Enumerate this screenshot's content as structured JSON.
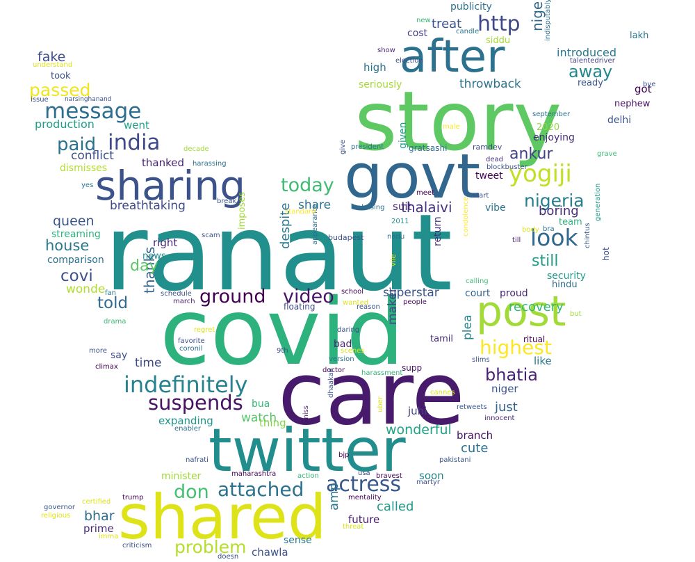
{
  "wordcloud": {
    "words": [
      {
        "text": "ranaut",
        "color": "#21908d"
      },
      {
        "text": "covid",
        "color": "#2db27d"
      },
      {
        "text": "story",
        "color": "#5ec962"
      },
      {
        "text": "care",
        "color": "#481a6c"
      },
      {
        "text": "twitter",
        "color": "#218e8d"
      },
      {
        "text": "shared",
        "color": "#dde318"
      },
      {
        "text": "govt",
        "color": "#31678e"
      },
      {
        "text": "after",
        "color": "#2c718e"
      },
      {
        "text": "sharing",
        "color": "#3b528b"
      },
      {
        "text": "post",
        "color": "#a2da37"
      },
      {
        "text": "message",
        "color": "#2e6e8e"
      },
      {
        "text": "india",
        "color": "#3e4a89"
      },
      {
        "text": "indefinitely",
        "color": "#26828e"
      },
      {
        "text": "suspends",
        "color": "#471365"
      },
      {
        "text": "actress",
        "color": "#38588c"
      },
      {
        "text": "attached",
        "color": "#2c728e"
      },
      {
        "text": "don",
        "color": "#44bf70"
      },
      {
        "text": "ground",
        "color": "#440154"
      },
      {
        "text": "video",
        "color": "#481467"
      },
      {
        "text": "yogiji",
        "color": "#c2df23"
      },
      {
        "text": "look",
        "color": "#31688e"
      },
      {
        "text": "nigeria",
        "color": "#277f8e"
      },
      {
        "text": "today",
        "color": "#3fbc73"
      },
      {
        "text": "http",
        "color": "#3e4989"
      },
      {
        "text": "nigerian",
        "color": "#31688e"
      },
      {
        "text": "highest",
        "color": "#fde725"
      },
      {
        "text": "bhatia",
        "color": "#482173"
      },
      {
        "text": "paid",
        "color": "#2c728e"
      },
      {
        "text": "passed",
        "color": "#f1e51d"
      },
      {
        "text": "told",
        "color": "#31688e"
      },
      {
        "text": "thanks",
        "color": "#33638d"
      },
      {
        "text": "ankur",
        "color": "#424086"
      },
      {
        "text": "away",
        "color": "#23888e"
      },
      {
        "text": "covi",
        "color": "#3b528b"
      },
      {
        "text": "fake",
        "color": "#3d4e8a"
      },
      {
        "text": "house",
        "color": "#2a788e"
      },
      {
        "text": "queen",
        "color": "#3a548c"
      },
      {
        "text": "problem",
        "color": "#b5de2b"
      },
      {
        "text": "thalaivi",
        "color": "#46327e"
      },
      {
        "text": "breathtaking",
        "color": "#3e4a89"
      },
      {
        "text": "still",
        "color": "#1f9e89"
      },
      {
        "text": "wonderful",
        "color": "#20a386"
      },
      {
        "text": "called",
        "color": "#1e9b8a"
      },
      {
        "text": "amp",
        "color": "#2a768e"
      },
      {
        "text": "bhar",
        "color": "#2f6c8e"
      },
      {
        "text": "day",
        "color": "#5cc863"
      },
      {
        "text": "treat",
        "color": "#3b528b"
      },
      {
        "text": "throwback",
        "color": "#2c718e"
      },
      {
        "text": "boring",
        "color": "#472d7b"
      },
      {
        "text": "introduced",
        "color": "#2a788e"
      },
      {
        "text": "superstar",
        "color": "#3a548c"
      },
      {
        "text": "despite",
        "color": "#2a778e"
      },
      {
        "text": "maker",
        "color": "#414487"
      },
      {
        "text": "cute",
        "color": "#2c718e"
      },
      {
        "text": "just",
        "color": "#33638d"
      },
      {
        "text": "share",
        "color": "#2c728e"
      },
      {
        "text": "recovery",
        "color": "#35b779"
      },
      {
        "text": "time",
        "color": "#3e4989"
      },
      {
        "text": "future",
        "color": "#481b6d"
      },
      {
        "text": "prime",
        "color": "#482878"
      },
      {
        "text": "chawla",
        "color": "#3b528b"
      },
      {
        "text": "got",
        "color": "#440154"
      },
      {
        "text": "conflict",
        "color": "#3b528b"
      },
      {
        "text": "thanked",
        "color": "#482475"
      },
      {
        "text": "production",
        "color": "#1fa088"
      },
      {
        "text": "went",
        "color": "#1fa188"
      },
      {
        "text": "high",
        "color": "#2c718e"
      },
      {
        "text": "seriously",
        "color": "#a5db36"
      },
      {
        "text": "enjoying",
        "color": "#472d7b"
      },
      {
        "text": "proud",
        "color": "#482677"
      },
      {
        "text": "watch",
        "color": "#56c667"
      },
      {
        "text": "expanding",
        "color": "#1f968b"
      },
      {
        "text": "plea",
        "color": "#24868e"
      },
      {
        "text": "juhi",
        "color": "#414487"
      },
      {
        "text": "soon",
        "color": "#25848e"
      },
      {
        "text": "branch",
        "color": "#471063"
      },
      {
        "text": "niger",
        "color": "#3b528b"
      },
      {
        "text": "like",
        "color": "#2a778e"
      },
      {
        "text": "wonde",
        "color": "#b2dd2d"
      },
      {
        "text": "right",
        "color": "#482677"
      },
      {
        "text": "comparison",
        "color": "#2c718e"
      },
      {
        "text": "streaming",
        "color": "#2db27d"
      },
      {
        "text": "suit",
        "color": "#472a7a"
      },
      {
        "text": "vibe",
        "color": "#2a788e"
      },
      {
        "text": "tweet",
        "color": "#440154"
      },
      {
        "text": "hindu",
        "color": "#2e6e8e"
      },
      {
        "text": "security",
        "color": "#1e9c89"
      },
      {
        "text": "delhi",
        "color": "#3b528b"
      },
      {
        "text": "nephew",
        "color": "#481467"
      },
      {
        "text": "ready",
        "color": "#3a548c"
      },
      {
        "text": "lakh",
        "color": "#2a778e"
      },
      {
        "text": "publicity",
        "color": "#2d708e"
      },
      {
        "text": "cost",
        "color": "#424086"
      },
      {
        "text": "siddu",
        "color": "#a8db34"
      },
      {
        "text": "2020",
        "color": "#90d743"
      },
      {
        "text": "court",
        "color": "#33638d"
      },
      {
        "text": "bad",
        "color": "#482475"
      },
      {
        "text": "dismisses",
        "color": "#b2dd2d"
      },
      {
        "text": "took",
        "color": "#3b528b"
      },
      {
        "text": "minister",
        "color": "#a0da39"
      },
      {
        "text": "say",
        "color": "#3e4989"
      },
      {
        "text": "hot",
        "color": "#3b528b"
      },
      {
        "text": "return",
        "color": "#46337e"
      },
      {
        "text": "imposes",
        "color": "#a2da37"
      },
      {
        "text": "news",
        "color": "#228c8d"
      },
      {
        "text": "team",
        "color": "#2db27d"
      },
      {
        "text": "thing",
        "color": "#84d44b"
      },
      {
        "text": "bua",
        "color": "#35b779"
      },
      {
        "text": "sense",
        "color": "#2a788e"
      },
      {
        "text": "supp",
        "color": "#481467"
      },
      {
        "text": "tamil",
        "color": "#472d7b"
      },
      {
        "text": "ritual",
        "color": "#440154"
      },
      {
        "text": "slims",
        "color": "#3b528b"
      },
      {
        "text": "innocent",
        "color": "#482878"
      },
      {
        "text": "retweets",
        "color": "#39568c"
      },
      {
        "text": "people",
        "color": "#470d60"
      },
      {
        "text": "reason",
        "color": "#3b528b"
      },
      {
        "text": "floating",
        "color": "#3e4989"
      },
      {
        "text": "schedule",
        "color": "#3b528b"
      },
      {
        "text": "march",
        "color": "#481f70"
      },
      {
        "text": "nadu",
        "color": "#2e6e8e"
      },
      {
        "text": "budapest",
        "color": "#3b528b"
      },
      {
        "text": "appearance",
        "color": "#2c718e"
      },
      {
        "text": "school",
        "color": "#440154"
      },
      {
        "text": "calling",
        "color": "#3fbc73"
      },
      {
        "text": "condolence",
        "color": "#fde725"
      },
      {
        "text": "till",
        "color": "#481a6c"
      },
      {
        "text": "bra",
        "color": "#2c718e"
      },
      {
        "text": "chintus",
        "color": "#38588c"
      },
      {
        "text": "generation",
        "color": "#1f9a8a"
      },
      {
        "text": "body",
        "color": "#dde318"
      },
      {
        "text": "start",
        "color": "#3b528b"
      },
      {
        "text": "meet",
        "color": "#440154"
      },
      {
        "text": "dead",
        "color": "#46307e"
      },
      {
        "text": "blockbuster",
        "color": "#3b528b"
      },
      {
        "text": "ramdev",
        "color": "#3e4989"
      },
      {
        "text": "grave",
        "color": "#3fbc73"
      },
      {
        "text": "talentedriver",
        "color": "#433e85"
      },
      {
        "text": "indisputably",
        "color": "#2c718e"
      },
      {
        "text": "bye",
        "color": "#3b528b"
      },
      {
        "text": "september",
        "color": "#2c718e"
      },
      {
        "text": "male",
        "color": "#fde725"
      },
      {
        "text": "president",
        "color": "#2c728e"
      },
      {
        "text": "given",
        "color": "#1f9e89"
      },
      {
        "text": "gratsashi",
        "color": "#2c718e"
      },
      {
        "text": "give",
        "color": "#3b528b"
      },
      {
        "text": "election",
        "color": "#3b528b"
      },
      {
        "text": "candle",
        "color": "#2a788e"
      },
      {
        "text": "new",
        "color": "#35b779"
      },
      {
        "text": "show",
        "color": "#482878"
      },
      {
        "text": "understand",
        "color": "#dde318"
      },
      {
        "text": "issue",
        "color": "#3b528b"
      },
      {
        "text": "narsinghanand",
        "color": "#3b528b"
      },
      {
        "text": "decade",
        "color": "#a0da39"
      },
      {
        "text": "harassing",
        "color": "#2c718e"
      },
      {
        "text": "yes",
        "color": "#2a788e"
      },
      {
        "text": "break",
        "color": "#3b528b"
      },
      {
        "text": "standard",
        "color": "#fde725"
      },
      {
        "text": "abusing",
        "color": "#2c718e"
      },
      {
        "text": "2011",
        "color": "#21918c"
      },
      {
        "text": "scam",
        "color": "#3b528b"
      },
      {
        "text": "fan",
        "color": "#2c718e"
      },
      {
        "text": "drama",
        "color": "#3fbc73"
      },
      {
        "text": "regret",
        "color": "#dde318"
      },
      {
        "text": "favorite",
        "color": "#3b528b"
      },
      {
        "text": "coronil",
        "color": "#2c718e"
      },
      {
        "text": "9th",
        "color": "#3b528b"
      },
      {
        "text": "more",
        "color": "#3b528b"
      },
      {
        "text": "climax",
        "color": "#440154"
      },
      {
        "text": "daring",
        "color": "#3b528b"
      },
      {
        "text": "scenes",
        "color": "#dde318"
      },
      {
        "text": "version",
        "color": "#2c718e"
      },
      {
        "text": "doctor",
        "color": "#440154"
      },
      {
        "text": "harassment",
        "color": "#35b779"
      },
      {
        "text": "wanted",
        "color": "#dde318"
      },
      {
        "text": "vile",
        "color": "#dde318"
      },
      {
        "text": "but",
        "color": "#a0da39"
      },
      {
        "text": "cannes",
        "color": "#dde318"
      },
      {
        "text": "uber",
        "color": "#dde318"
      },
      {
        "text": "dhaakad",
        "color": "#3b528b"
      },
      {
        "text": "miss",
        "color": "#481a6c"
      },
      {
        "text": "enabler",
        "color": "#2c718e"
      },
      {
        "text": "nafrati",
        "color": "#3b528b"
      },
      {
        "text": "maharashtra",
        "color": "#440154"
      },
      {
        "text": "bjp",
        "color": "#440154"
      },
      {
        "text": "usa",
        "color": "#3b528b"
      },
      {
        "text": "action",
        "color": "#35b779"
      },
      {
        "text": "bravest",
        "color": "#440154"
      },
      {
        "text": "martyr",
        "color": "#3b528b"
      },
      {
        "text": "pakistani",
        "color": "#3b528b"
      },
      {
        "text": "mentality",
        "color": "#440154"
      },
      {
        "text": "governor",
        "color": "#3b528b"
      },
      {
        "text": "certified",
        "color": "#dde318"
      },
      {
        "text": "trump",
        "color": "#440154"
      },
      {
        "text": "religious",
        "color": "#dde318"
      },
      {
        "text": "imma",
        "color": "#dde318"
      },
      {
        "text": "threat",
        "color": "#dde318"
      },
      {
        "text": "criticism",
        "color": "#3b528b"
      },
      {
        "text": "doesn",
        "color": "#3b528b"
      }
    ]
  }
}
